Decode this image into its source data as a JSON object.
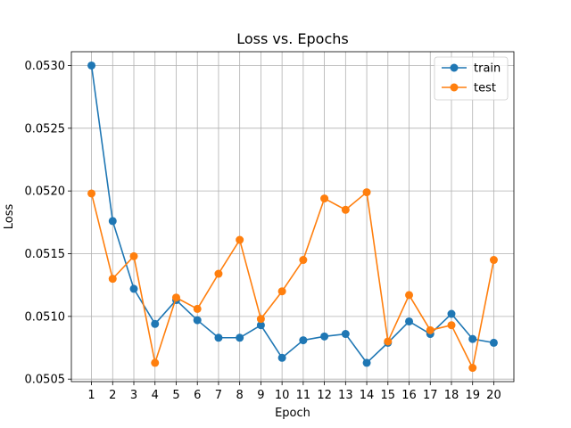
{
  "chart_data": {
    "type": "line",
    "title": "Loss vs. Epochs",
    "xlabel": "Epoch",
    "ylabel": "Loss",
    "x": [
      1,
      2,
      3,
      4,
      5,
      6,
      7,
      8,
      9,
      10,
      11,
      12,
      13,
      14,
      15,
      16,
      17,
      18,
      19,
      20
    ],
    "xticks": [
      "1",
      "2",
      "3",
      "4",
      "5",
      "6",
      "7",
      "8",
      "9",
      "10",
      "11",
      "12",
      "13",
      "14",
      "15",
      "16",
      "17",
      "18",
      "19",
      "20"
    ],
    "xlim": [
      0.05,
      20.95
    ],
    "ylim": [
      0.05048,
      0.05311
    ],
    "yticks": [
      0.0505,
      0.051,
      0.0515,
      0.052,
      0.0525,
      0.053
    ],
    "ytick_labels": [
      "0.0505",
      "0.0510",
      "0.0515",
      "0.0520",
      "0.0525",
      "0.0530"
    ],
    "grid": true,
    "legend_position": "top-right",
    "series": [
      {
        "name": "train",
        "color": "#1f77b4",
        "marker": "circle",
        "values": [
          0.053,
          0.05176,
          0.05122,
          0.05094,
          0.05113,
          0.05097,
          0.05083,
          0.05083,
          0.05093,
          0.05067,
          0.05081,
          0.05084,
          0.05086,
          0.05063,
          0.05079,
          0.05096,
          0.05086,
          0.05102,
          0.05082,
          0.05079
        ]
      },
      {
        "name": "test",
        "color": "#ff7f0e",
        "marker": "circle",
        "values": [
          0.05198,
          0.0513,
          0.05148,
          0.05063,
          0.05115,
          0.05106,
          0.05134,
          0.05161,
          0.05098,
          0.0512,
          0.05145,
          0.05194,
          0.05185,
          0.05199,
          0.0508,
          0.05117,
          0.05089,
          0.05093,
          0.05059,
          0.05145
        ]
      }
    ]
  }
}
